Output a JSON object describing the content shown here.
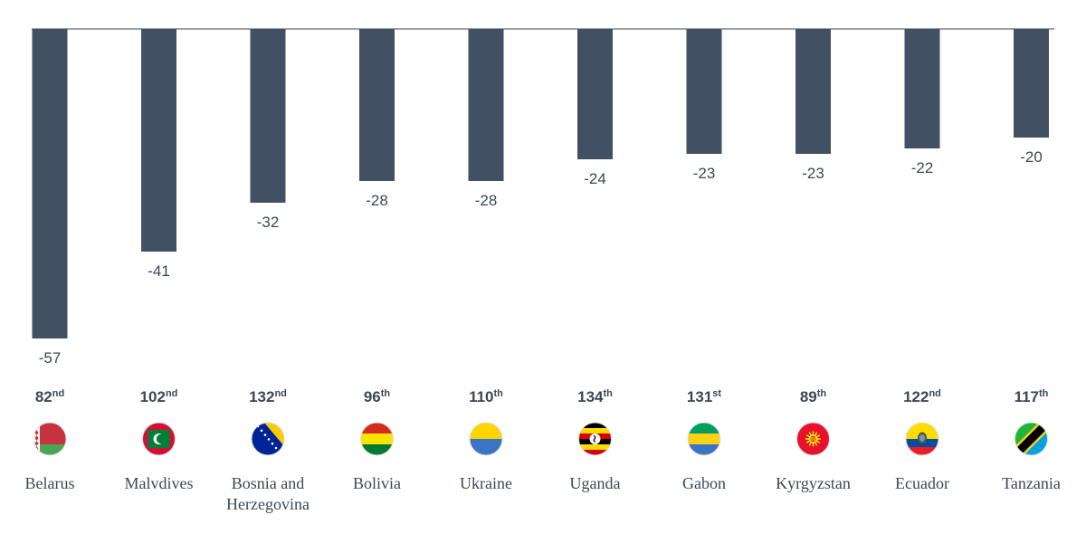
{
  "colors": {
    "bar": "#425063",
    "axis": "#3d4753",
    "text": "#3d4753"
  },
  "chart_data": {
    "type": "bar",
    "title": "",
    "xlabel": "",
    "ylabel": "",
    "ylim": [
      -57,
      0
    ],
    "grid": false,
    "categories": [
      "Belarus",
      "Malvdives",
      "Bosnia and Herzegovina",
      "Bolivia",
      "Ukraine",
      "Uganda",
      "Gabon",
      "Kyrgyzstan",
      "Ecuador",
      "Tanzania"
    ],
    "values": [
      -57,
      -41,
      -32,
      -28,
      -28,
      -24,
      -23,
      -23,
      -22,
      -20
    ],
    "value_labels": [
      "-57",
      "-41",
      "-32",
      "-28",
      "-28",
      "-24",
      "-23",
      "-23",
      "-22",
      "-20"
    ],
    "ranks": [
      {
        "num": "82",
        "suffix": "nd"
      },
      {
        "num": "102",
        "suffix": "nd"
      },
      {
        "num": "132",
        "suffix": "nd"
      },
      {
        "num": "96",
        "suffix": "th"
      },
      {
        "num": "110",
        "suffix": "th"
      },
      {
        "num": "134",
        "suffix": "th"
      },
      {
        "num": "131",
        "suffix": "st"
      },
      {
        "num": "89",
        "suffix": "th"
      },
      {
        "num": "122",
        "suffix": "nd"
      },
      {
        "num": "117",
        "suffix": "th"
      }
    ],
    "label_lines": [
      [
        "Belarus"
      ],
      [
        "Malvdives"
      ],
      [
        "Bosnia and",
        "Herzegovina"
      ],
      [
        "Bolivia"
      ],
      [
        "Ukraine"
      ],
      [
        "Uganda"
      ],
      [
        "Gabon"
      ],
      [
        "Kyrgyzstan"
      ],
      [
        "Ecuador"
      ],
      [
        "Tanzania"
      ]
    ],
    "flags": [
      "belarus-flag-icon",
      "maldives-flag-icon",
      "bosnia-flag-icon",
      "bolivia-flag-icon",
      "ukraine-flag-icon",
      "uganda-flag-icon",
      "gabon-flag-icon",
      "kyrgyzstan-flag-icon",
      "ecuador-flag-icon",
      "tanzania-flag-icon"
    ]
  }
}
